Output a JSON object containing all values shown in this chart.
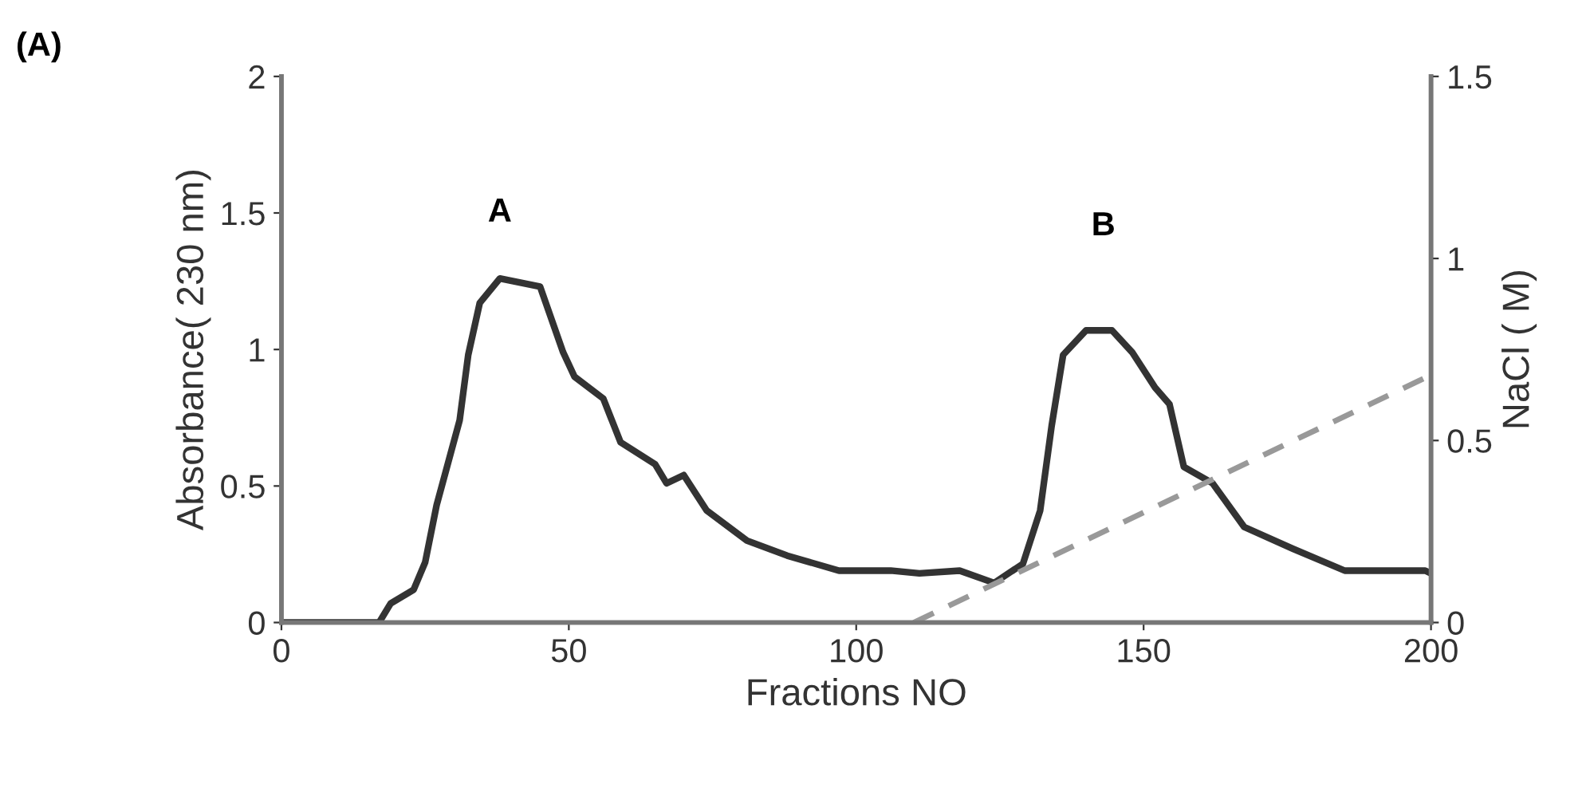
{
  "chart_data": {
    "type": "line",
    "title": "(A)",
    "xlabel": "Fractions NO",
    "ylabel": "Absorbance( 230 nm)",
    "y2label": "NaCl ( M)",
    "xlim": [
      0,
      200
    ],
    "xticks": [
      0,
      50,
      100,
      150,
      200
    ],
    "ylim": [
      0,
      2
    ],
    "yticks": [
      0,
      0.5,
      1,
      1.5,
      2
    ],
    "y2lim": [
      0,
      1.5
    ],
    "y2ticks": [
      0,
      0.5,
      1,
      1.5
    ],
    "grid": false,
    "legend": false,
    "marker": "none",
    "series": [
      {
        "color": "#333333",
        "line_style": "solid",
        "x": [
          0,
          10,
          17,
          19,
          23,
          25,
          27,
          31,
          32.5,
          34.5,
          38,
          45,
          49,
          51,
          56,
          59,
          65,
          67,
          70,
          74,
          81,
          88,
          97,
          106,
          111,
          118,
          124,
          129,
          132,
          134,
          136,
          140,
          144.5,
          148,
          152,
          154.5,
          157,
          162,
          167.5,
          176,
          185,
          199,
          200
        ],
        "values": [
          0,
          0,
          0,
          0.07,
          0.12,
          0.22,
          0.43,
          0.74,
          0.98,
          1.17,
          1.26,
          1.23,
          0.99,
          0.9,
          0.82,
          0.66,
          0.58,
          0.51,
          0.54,
          0.41,
          0.3,
          0.245,
          0.19,
          0.19,
          0.18,
          0.19,
          0.145,
          0.215,
          0.41,
          0.72,
          0.98,
          1.07,
          1.07,
          0.99,
          0.86,
          0.8,
          0.57,
          0.51,
          0.35,
          0.27,
          0.19,
          0.19,
          0.18
        ]
      },
      {
        "color": "#999999",
        "line_style": "dashed",
        "axis": "y2",
        "x": [
          110,
          200
        ],
        "values": [
          0,
          0.68
        ]
      }
    ],
    "annotations": [
      "A",
      "B"
    ]
  }
}
